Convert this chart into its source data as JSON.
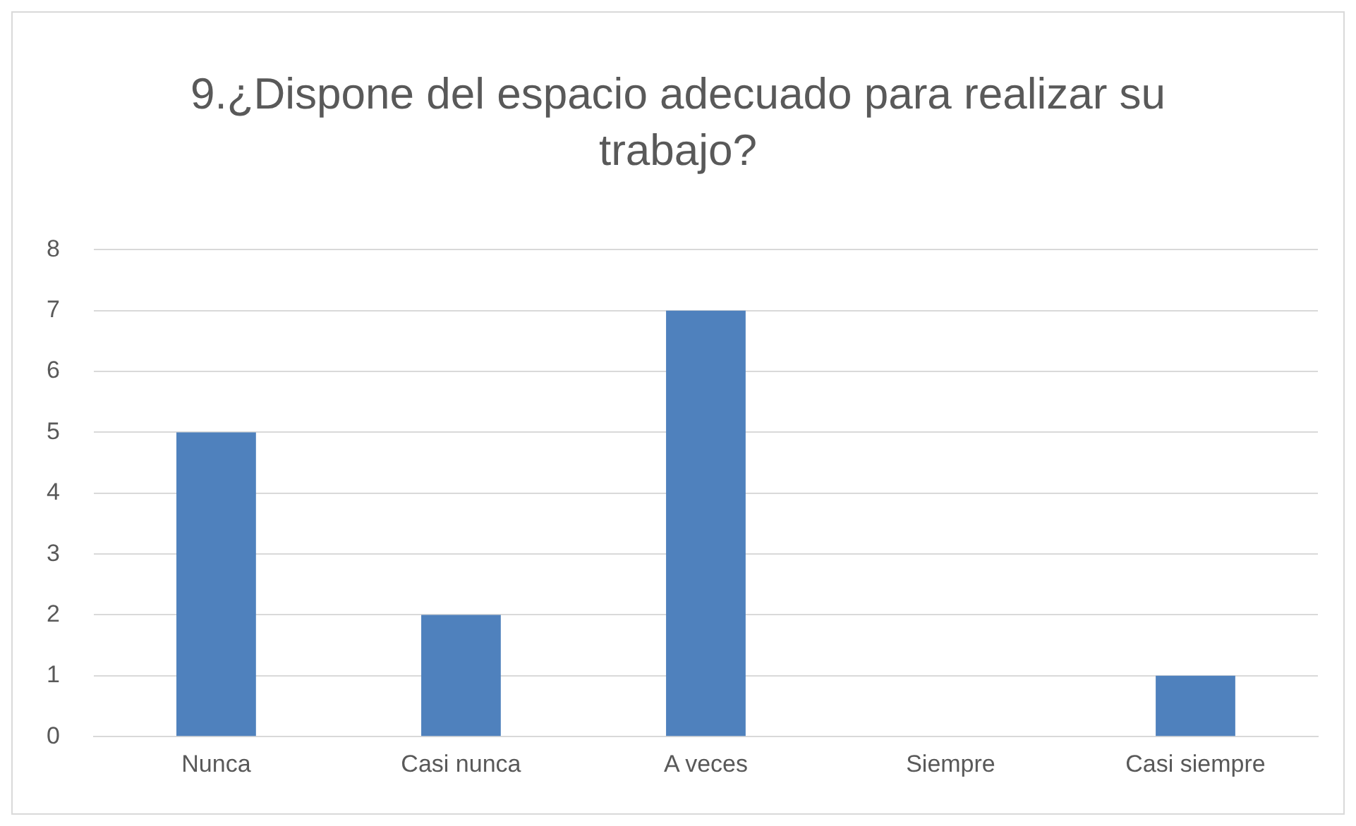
{
  "chart_data": {
    "type": "bar",
    "title": "9.¿Dispone del espacio adecuado para realizar su trabajo?",
    "categories": [
      "Nunca",
      "Casi nunca",
      "A veces",
      "Siempre",
      "Casi siempre"
    ],
    "values": [
      5,
      2,
      7,
      0,
      1
    ],
    "color": "#4f81bd",
    "ylim": [
      0,
      8
    ],
    "yticks": [
      0,
      1,
      2,
      3,
      4,
      5,
      6,
      7,
      8
    ],
    "grid": "y",
    "legend": false
  }
}
